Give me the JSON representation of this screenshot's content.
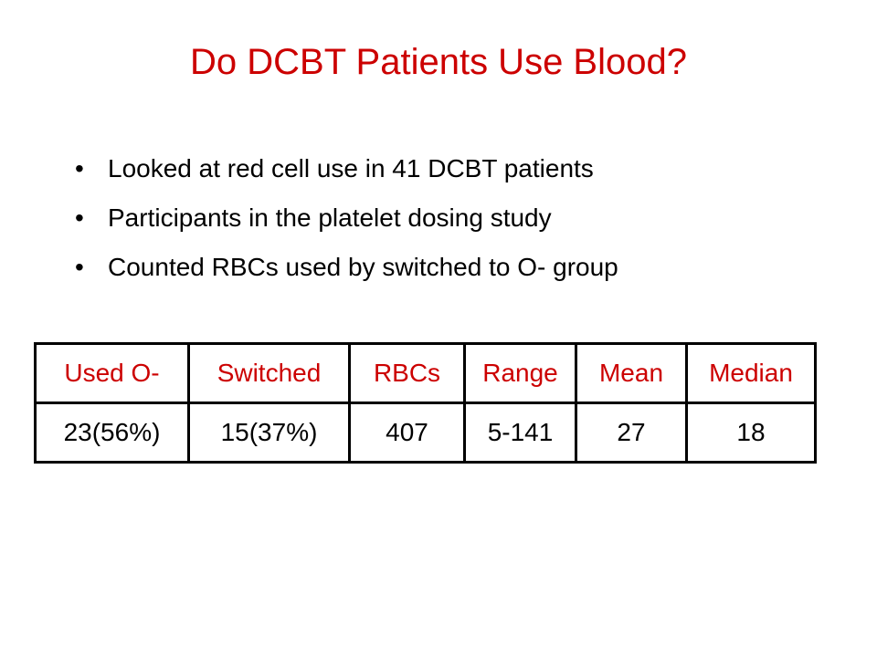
{
  "slide": {
    "title": "Do DCBT Patients Use Blood?"
  },
  "bullets": [
    "Looked at red cell use in 41 DCBT patients",
    "Participants in the platelet dosing study",
    "Counted RBCs used by switched to O- group"
  ],
  "bullet_symbol": "•",
  "table": {
    "headers": [
      "Used O-",
      "Switched",
      "RBCs",
      "Range",
      "Mean",
      "Median"
    ],
    "rows": [
      [
        "23(56%)",
        "15(37%)",
        "407",
        "5-141",
        "27",
        "18"
      ]
    ]
  },
  "colors": {
    "accent": "#cc0000",
    "text": "#000000",
    "background": "#ffffff"
  }
}
